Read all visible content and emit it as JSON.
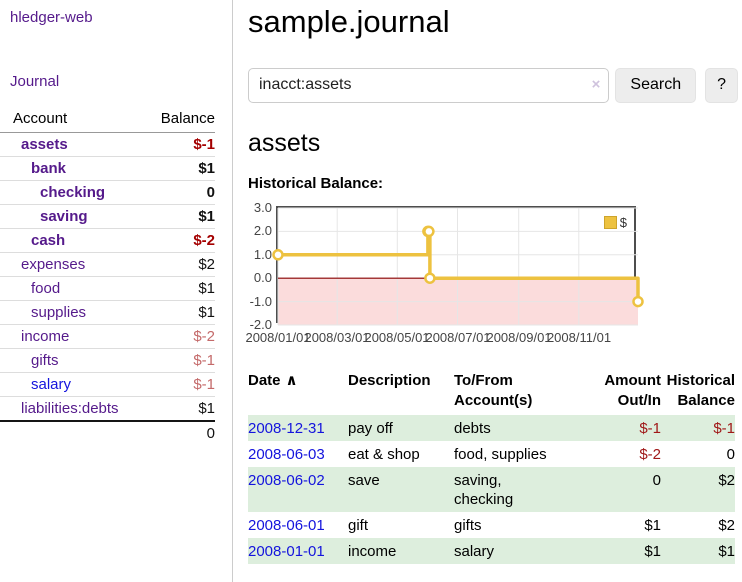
{
  "app": {
    "brand": "hledger-web",
    "nav_journal": "Journal"
  },
  "colors": {
    "link_purple": "#551a8b",
    "link_blue": "#1414dd",
    "negative_strong": "#a40000",
    "negative_muted": "#c46a6a",
    "table_negative": "#a01818",
    "row_stripe_green": "#ddeedd",
    "chart_line_yellow": "#edc240"
  },
  "sidebar": {
    "columns": {
      "account": "Account",
      "balance": "Balance"
    },
    "accounts": [
      {
        "name": "assets",
        "balance": "$-1",
        "indent": 0,
        "bold": true,
        "balance_color": "neg-strong",
        "link_color": "purple"
      },
      {
        "name": "bank",
        "balance": "$1",
        "indent": 1,
        "bold": true,
        "balance_color": "normal",
        "link_color": "purple"
      },
      {
        "name": "checking",
        "balance": "0",
        "indent": 2,
        "bold": true,
        "balance_color": "normal",
        "link_color": "purple"
      },
      {
        "name": "saving",
        "balance": "$1",
        "indent": 2,
        "bold": true,
        "balance_color": "normal",
        "link_color": "purple"
      },
      {
        "name": "cash",
        "balance": "$-2",
        "indent": 1,
        "bold": true,
        "balance_color": "neg-strong",
        "link_color": "purple"
      },
      {
        "name": "expenses",
        "balance": "$2",
        "indent": 0,
        "bold": false,
        "balance_color": "normal",
        "link_color": "purple"
      },
      {
        "name": "food",
        "balance": "$1",
        "indent": 1,
        "bold": false,
        "balance_color": "normal",
        "link_color": "purple"
      },
      {
        "name": "supplies",
        "balance": "$1",
        "indent": 1,
        "bold": false,
        "balance_color": "normal",
        "link_color": "purple"
      },
      {
        "name": "income",
        "balance": "$-2",
        "indent": 0,
        "bold": false,
        "balance_color": "neg-muted",
        "link_color": "purple"
      },
      {
        "name": "gifts",
        "balance": "$-1",
        "indent": 1,
        "bold": false,
        "balance_color": "neg-muted",
        "link_color": "purple"
      },
      {
        "name": "salary",
        "balance": "$-1",
        "indent": 1,
        "bold": false,
        "balance_color": "neg-muted",
        "link_color": "blue"
      },
      {
        "name": "liabilities:debts",
        "balance": "$1",
        "indent": 0,
        "bold": false,
        "balance_color": "normal",
        "link_color": "purple"
      }
    ],
    "total": "0"
  },
  "header": {
    "title": "sample.journal"
  },
  "search": {
    "value": "inacct:assets",
    "clear_icon": "×",
    "button_label": "Search",
    "help_label": "?"
  },
  "account_page": {
    "heading": "assets"
  },
  "chart_data": {
    "type": "line",
    "title": "Historical Balance:",
    "legend": {
      "label": "$",
      "position": "top-right"
    },
    "xlim": [
      "2008-01-01",
      "2008-12-31"
    ],
    "ylim": [
      -2,
      3
    ],
    "y_ticks": [
      3.0,
      2.0,
      1.0,
      0.0,
      -1.0,
      -2.0
    ],
    "x_ticks": [
      {
        "label": "2008/01/01",
        "date": "2008-01-01"
      },
      {
        "label": "2008/03/01",
        "date": "2008-03-01"
      },
      {
        "label": "2008/05/01",
        "date": "2008-05-01"
      },
      {
        "label": "2008/07/01",
        "date": "2008-07-01"
      },
      {
        "label": "2008/09/01",
        "date": "2008-09-01"
      },
      {
        "label": "2008/11/01",
        "date": "2008-11-01"
      }
    ],
    "series": [
      {
        "name": "$",
        "color": "#edc240",
        "marker_fill": "#ffffff",
        "step": true,
        "points": [
          {
            "date": "2008-01-01",
            "value": 1
          },
          {
            "date": "2008-06-01",
            "value": 2
          },
          {
            "date": "2008-06-02",
            "value": 2
          },
          {
            "date": "2008-06-03",
            "value": 0
          },
          {
            "date": "2008-12-31",
            "value": -1
          }
        ]
      }
    ],
    "grid": true,
    "grid_color": "#e6e6e6",
    "border_color": "#4d4d4d",
    "zero_line_color": "#8b0000",
    "negative_region_color": "#fbdcdc"
  },
  "register": {
    "columns": [
      {
        "label": "Date",
        "align": "left",
        "sort_indicator": "∧"
      },
      {
        "label": "Description",
        "align": "left"
      },
      {
        "label": "To/From\nAccount(s)",
        "align": "left"
      },
      {
        "label": "Amount\nOut/In",
        "align": "right"
      },
      {
        "label": "Historical\nBalance",
        "align": "right"
      }
    ],
    "rows": [
      {
        "date": "2008-12-31",
        "description": "pay off",
        "accounts": "debts",
        "amount": "$-1",
        "balance": "$-1"
      },
      {
        "date": "2008-06-03",
        "description": "eat & shop",
        "accounts": "food, supplies",
        "amount": "$-2",
        "balance": "0"
      },
      {
        "date": "2008-06-02",
        "description": "save",
        "accounts": "saving,\nchecking",
        "amount": "0",
        "balance": "$2"
      },
      {
        "date": "2008-06-01",
        "description": "gift",
        "accounts": "gifts",
        "amount": "$1",
        "balance": "$2"
      },
      {
        "date": "2008-01-01",
        "description": "income",
        "accounts": "salary",
        "amount": "$1",
        "balance": "$1"
      }
    ]
  }
}
